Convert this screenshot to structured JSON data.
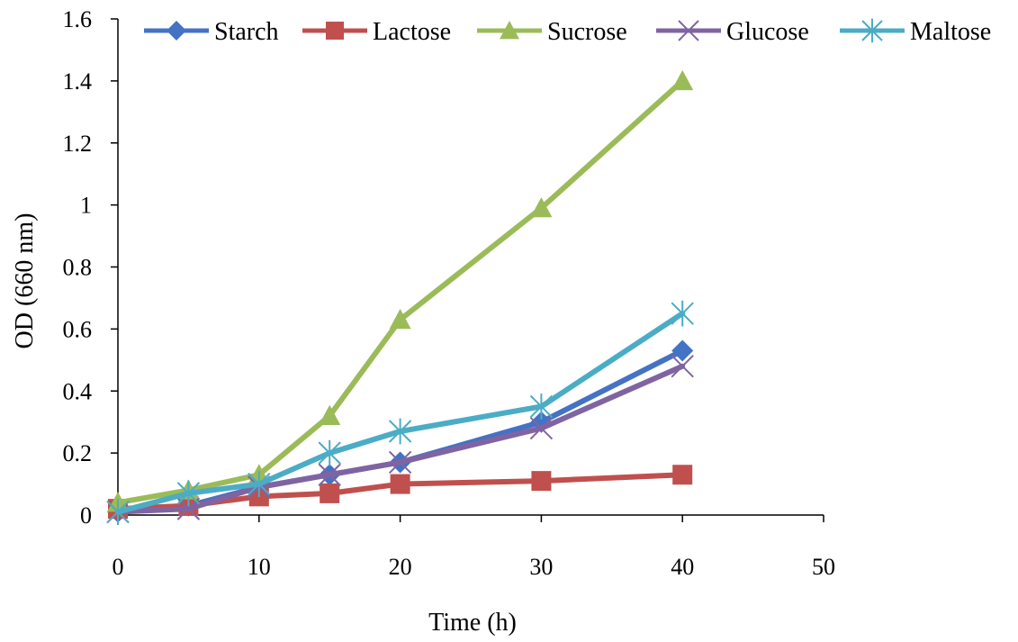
{
  "chart_data": {
    "type": "line",
    "title": "",
    "xlabel": "Time (h)",
    "ylabel": "OD (660 nm)",
    "xlim": [
      0,
      50
    ],
    "ylim": [
      0,
      1.6
    ],
    "xticks": [
      0,
      10,
      20,
      30,
      40,
      50
    ],
    "yticks": [
      0,
      0.2,
      0.4,
      0.6,
      0.8,
      1,
      1.2,
      1.4,
      1.6
    ],
    "xtick_labels": [
      "0",
      "10",
      "20",
      "30",
      "40",
      "50"
    ],
    "ytick_labels": [
      "0",
      "0.2",
      "0.4",
      "0.6",
      "0.8",
      "1",
      "1.2",
      "1.4",
      "1.6"
    ],
    "grid": false,
    "legend_position": "top",
    "series": [
      {
        "name": "Starch",
        "color": "#4472C4",
        "marker": "diamond",
        "x": [
          0,
          5,
          10,
          15,
          20,
          30,
          40
        ],
        "y": [
          0.01,
          0.03,
          0.09,
          0.13,
          0.17,
          0.3,
          0.53
        ]
      },
      {
        "name": "Lactose",
        "color": "#C0504D",
        "marker": "square",
        "x": [
          0,
          5,
          10,
          15,
          20,
          30,
          40
        ],
        "y": [
          0.02,
          0.03,
          0.06,
          0.07,
          0.1,
          0.11,
          0.13
        ]
      },
      {
        "name": "Sucrose",
        "color": "#9BBB59",
        "marker": "triangle",
        "x": [
          0,
          5,
          10,
          15,
          20,
          30,
          40
        ],
        "y": [
          0.04,
          0.08,
          0.13,
          0.32,
          0.63,
          0.99,
          1.4
        ]
      },
      {
        "name": "Glucose",
        "color": "#8064A2",
        "marker": "x",
        "x": [
          0,
          5,
          10,
          15,
          20,
          30,
          40
        ],
        "y": [
          0.01,
          0.02,
          0.09,
          0.13,
          0.17,
          0.28,
          0.48
        ]
      },
      {
        "name": "Maltose",
        "color": "#4BACC6",
        "marker": "star",
        "x": [
          0,
          5,
          10,
          15,
          20,
          30,
          40
        ],
        "y": [
          0.01,
          0.07,
          0.1,
          0.2,
          0.27,
          0.35,
          0.65
        ]
      }
    ]
  }
}
